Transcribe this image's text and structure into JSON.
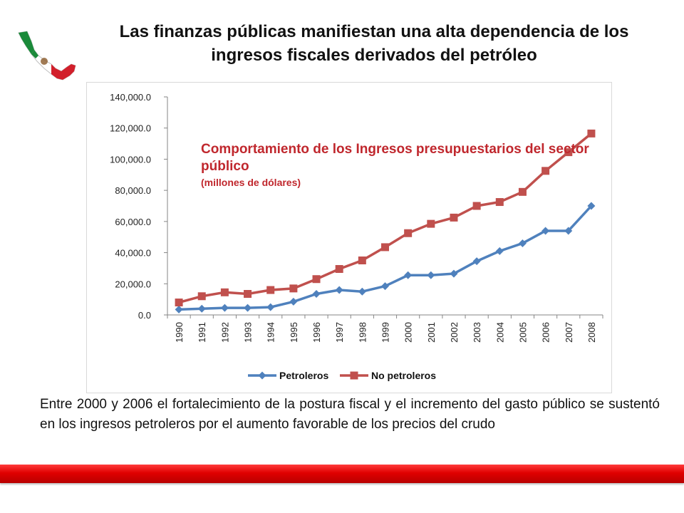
{
  "slide": {
    "title": "Las finanzas públicas manifiestan una alta dependencia de los ingresos fiscales derivados del petróleo",
    "body": "Entre 2000 y 2006 el fortalecimiento de la postura fiscal y el incremento del gasto público se sustentó en los ingresos petroleros por el aumento favorable de los precios del crudo",
    "logo_icon": "mexico-map-flag-icon",
    "accent_color": "#c0272d",
    "bar_color": "#e00000"
  },
  "chart_data": {
    "type": "line",
    "title": "Comportamiento de los Ingresos presupuestarios del sector público",
    "subtitle": "(millones de dólares)",
    "xlabel": "",
    "ylabel": "",
    "x": [
      "1990",
      "1991",
      "1992",
      "1993",
      "1994",
      "1995",
      "1996",
      "1997",
      "1998",
      "1999",
      "2000",
      "2001",
      "2002",
      "2003",
      "2004",
      "2005",
      "2006",
      "2007",
      "2008"
    ],
    "ylim": [
      0,
      140000
    ],
    "yticks": [
      "0.0",
      "20,000.0",
      "40,000.0",
      "60,000.0",
      "80,000.0",
      "100,000.0",
      "120,000.0",
      "140,000.0"
    ],
    "grid": false,
    "legend_position": "bottom",
    "series": [
      {
        "name": "Petroleros",
        "color": "#4f81bd",
        "marker": "diamond",
        "values": [
          3500,
          4000,
          4500,
          4500,
          5000,
          8500,
          13500,
          16000,
          15000,
          18500,
          25500,
          25500,
          26500,
          34500,
          41000,
          46000,
          54000,
          54000,
          70000
        ]
      },
      {
        "name": "No petroleros",
        "color": "#c0504d",
        "marker": "square",
        "values": [
          8000,
          12000,
          14500,
          13500,
          16000,
          17000,
          23000,
          29500,
          35000,
          43500,
          52500,
          58500,
          62500,
          70000,
          72500,
          79000,
          92500,
          104500,
          116500
        ]
      }
    ]
  }
}
